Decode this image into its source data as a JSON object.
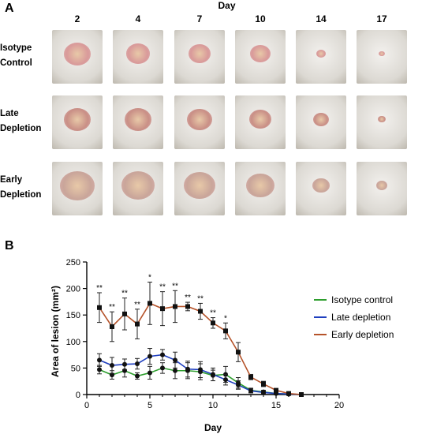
{
  "panel_a": {
    "letter": "A",
    "axis_title": "Day",
    "days": [
      "2",
      "4",
      "7",
      "10",
      "14",
      "17"
    ],
    "rows": [
      {
        "label_line1": "Isotype",
        "label_line2": "Control"
      },
      {
        "label_line1": "Late",
        "label_line2": "Depletion"
      },
      {
        "label_line1": "Early",
        "label_line2": "Depletion"
      }
    ]
  },
  "panel_b": {
    "letter": "B"
  },
  "colors": {
    "isotype": "#2e9e2e",
    "late": "#1f3fbf",
    "early": "#b5532a",
    "marker": "#111111",
    "fur": "#e9e7e3",
    "lesion": "#d98b8b"
  },
  "chart_data": {
    "type": "line",
    "xlabel": "Day",
    "ylabel": "Area of lesion (mm²)",
    "xlim": [
      0,
      20
    ],
    "ylim": [
      0,
      250
    ],
    "xticks": [
      "0",
      "5",
      "10",
      "15",
      "20"
    ],
    "yticks": [
      "0",
      "50",
      "100",
      "150",
      "200",
      "250"
    ],
    "legend_position": "right",
    "series": [
      {
        "name": "Isotype control",
        "color_key": "isotype",
        "x": [
          1,
          2,
          3,
          4,
          5,
          6,
          7,
          8,
          9,
          10,
          11,
          12,
          13,
          14,
          15,
          16,
          17
        ],
        "y": [
          47,
          37,
          45,
          35,
          41,
          50,
          45,
          45,
          43,
          36,
          38,
          22,
          8,
          5,
          2,
          1,
          0
        ],
        "err": [
          8,
          8,
          12,
          6,
          12,
          10,
          15,
          15,
          15,
          10,
          15,
          10,
          4,
          3,
          1,
          1,
          0
        ]
      },
      {
        "name": "Late depletion",
        "color_key": "late",
        "x": [
          1,
          2,
          3,
          4,
          5,
          6,
          7,
          8,
          9,
          10,
          11,
          12,
          13,
          14,
          15,
          16,
          17
        ],
        "y": [
          65,
          55,
          57,
          58,
          72,
          75,
          65,
          48,
          47,
          38,
          28,
          18,
          7,
          4,
          2,
          1,
          0
        ],
        "err": [
          12,
          15,
          10,
          10,
          15,
          10,
          15,
          15,
          15,
          12,
          10,
          8,
          4,
          3,
          1,
          1,
          0
        ]
      },
      {
        "name": "Early depletion",
        "color_key": "early",
        "x": [
          1,
          2,
          3,
          4,
          5,
          6,
          7,
          8,
          9,
          10,
          11,
          12,
          13,
          14,
          15,
          16,
          17
        ],
        "y": [
          164,
          128,
          152,
          133,
          172,
          162,
          166,
          166,
          157,
          135,
          120,
          80,
          33,
          20,
          8,
          2,
          0
        ],
        "err": [
          28,
          28,
          30,
          28,
          40,
          32,
          30,
          8,
          15,
          10,
          15,
          18,
          5,
          5,
          3,
          1,
          0
        ]
      }
    ],
    "annotations": [
      {
        "x": 1,
        "text": "**"
      },
      {
        "x": 2,
        "text": "**"
      },
      {
        "x": 3,
        "text": "**"
      },
      {
        "x": 4,
        "text": "**"
      },
      {
        "x": 5,
        "text": "*"
      },
      {
        "x": 6,
        "text": "**"
      },
      {
        "x": 7,
        "text": "**"
      },
      {
        "x": 8,
        "text": "**"
      },
      {
        "x": 9,
        "text": "**"
      },
      {
        "x": 10,
        "text": "**"
      },
      {
        "x": 11,
        "text": "*"
      }
    ]
  }
}
